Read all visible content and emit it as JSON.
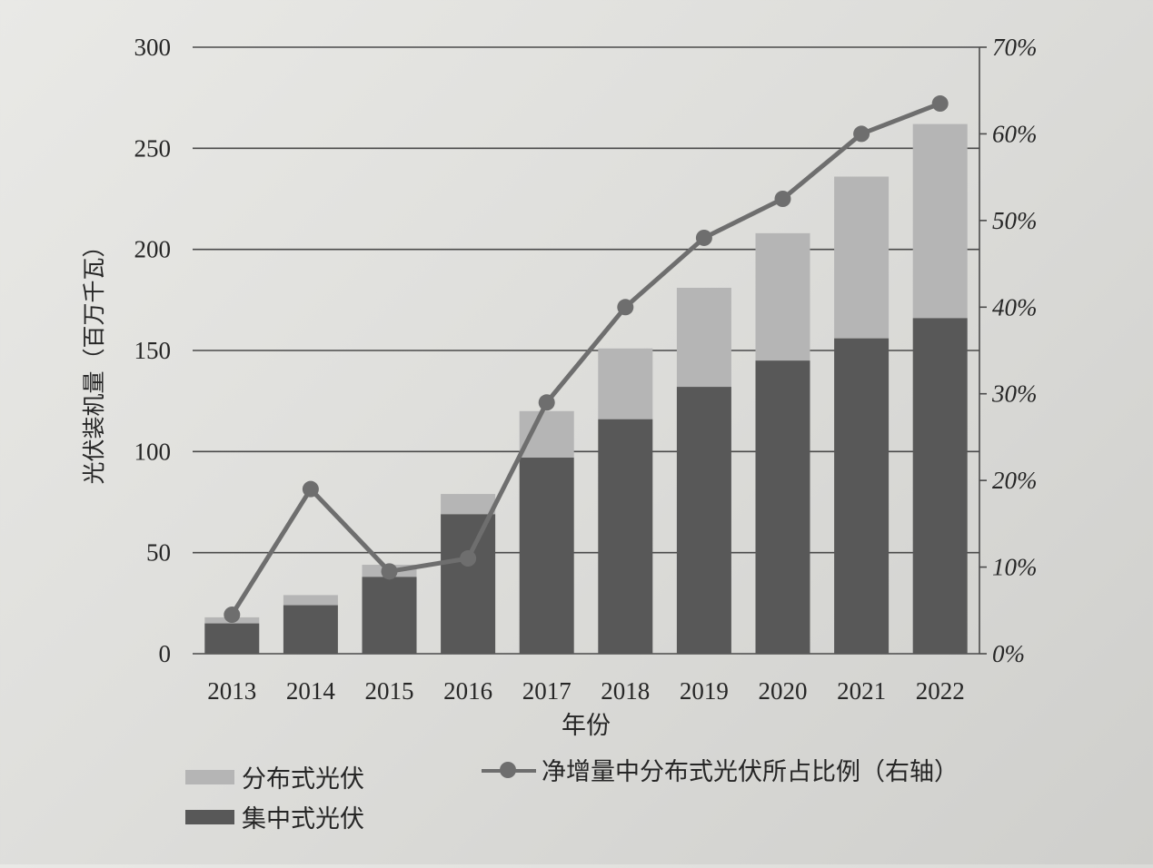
{
  "chart_data": {
    "type": "bar",
    "stacked": true,
    "categories": [
      "2013",
      "2014",
      "2015",
      "2016",
      "2017",
      "2018",
      "2019",
      "2020",
      "2021",
      "2022"
    ],
    "series": [
      {
        "name": "集中式光伏",
        "axis": "left",
        "color": "#585858",
        "values": [
          15,
          24,
          38,
          69,
          97,
          116,
          132,
          145,
          156,
          166
        ]
      },
      {
        "name": "分布式光伏",
        "axis": "left",
        "color": "#b5b5b5",
        "values": [
          3,
          5,
          6,
          10,
          23,
          35,
          49,
          63,
          80,
          96
        ]
      },
      {
        "name": "净增量中分布式光伏所占比例（右轴）",
        "axis": "right",
        "type": "line",
        "color": "#6e6e6e",
        "values": [
          4.5,
          19,
          9.5,
          11,
          29,
          40,
          48,
          52.5,
          60,
          63.5
        ]
      }
    ],
    "xlabel": "年份",
    "ylabel": "光伏装机量（百万千瓦）",
    "ylim": [
      0,
      300
    ],
    "y_ticks": [
      "0",
      "50",
      "100",
      "150",
      "200",
      "250",
      "300"
    ],
    "y2lim": [
      0,
      70
    ],
    "y2_ticks": [
      "0%",
      "10%",
      "20%",
      "30%",
      "40%",
      "50%",
      "60%",
      "70%"
    ],
    "grid": true,
    "legend_position": "bottom"
  },
  "legend": {
    "distributed": "分布式光伏",
    "centralized": "集中式光伏",
    "ratio": "净增量中分布式光伏所占比例（右轴）"
  }
}
